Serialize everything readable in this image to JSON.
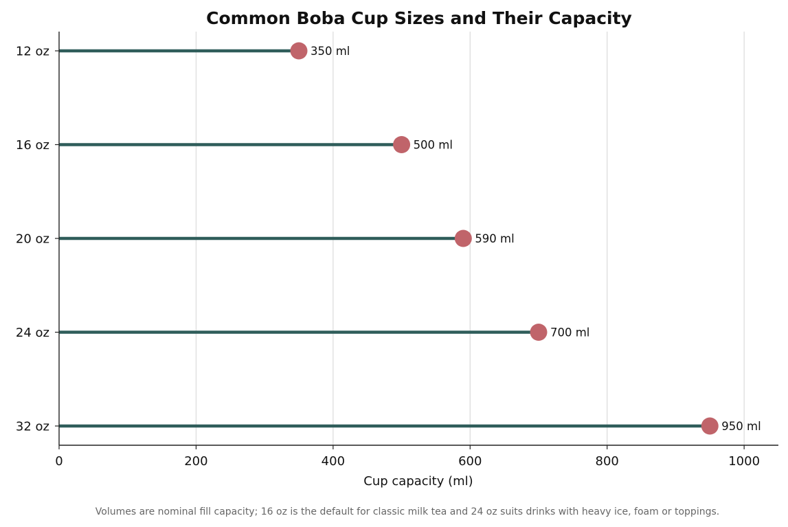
{
  "chart_data": {
    "type": "lollipop",
    "title": "Common Boba Cup Sizes and Their Capacity",
    "xlabel": "Cup capacity (ml)",
    "ylabel": "",
    "categories": [
      "12 oz",
      "16 oz",
      "20 oz",
      "24 oz",
      "32 oz"
    ],
    "values": [
      350,
      500,
      590,
      700,
      950
    ],
    "value_labels": [
      "350 ml",
      "500 ml",
      "590 ml",
      "700 ml",
      "950 ml"
    ],
    "xlim": [
      0,
      1050
    ],
    "xticks": [
      0,
      200,
      400,
      600,
      800,
      1000
    ],
    "xtick_labels": [
      "0",
      "200",
      "400",
      "600",
      "800",
      "1000"
    ],
    "grid": "vertical",
    "stem_color": "#2f5d5a",
    "marker_color": "#c0646a",
    "gridline_color": "#dddddd"
  },
  "caption": "Volumes are nominal fill capacity; 16 oz is the default for classic milk tea and 24 oz suits drinks with heavy ice, foam or toppings."
}
